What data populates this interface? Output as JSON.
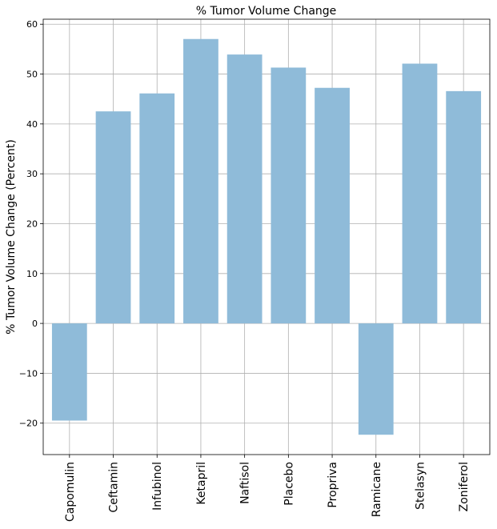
{
  "chart_data": {
    "type": "bar",
    "title": "% Tumor Volume Change",
    "xlabel": "",
    "ylabel": "% Tumor Volume Change (Percent)",
    "categories": [
      "Capomulin",
      "Ceftamin",
      "Infubinol",
      "Ketapril",
      "Naftisol",
      "Placebo",
      "Propriva",
      "Ramicane",
      "Stelasyn",
      "Zoniferol"
    ],
    "values": [
      -19.48,
      42.52,
      46.12,
      57.03,
      53.92,
      51.3,
      47.24,
      -22.32,
      52.09,
      46.58
    ],
    "ylim": [
      -26.3,
      61.0
    ],
    "yticks": [
      -20,
      -10,
      0,
      10,
      20,
      30,
      40,
      50,
      60
    ],
    "ytick_labels": [
      "−20",
      "−10",
      "0",
      "10",
      "20",
      "30",
      "40",
      "50",
      "60"
    ],
    "grid": true,
    "bar_color": "#8fbbd9"
  }
}
